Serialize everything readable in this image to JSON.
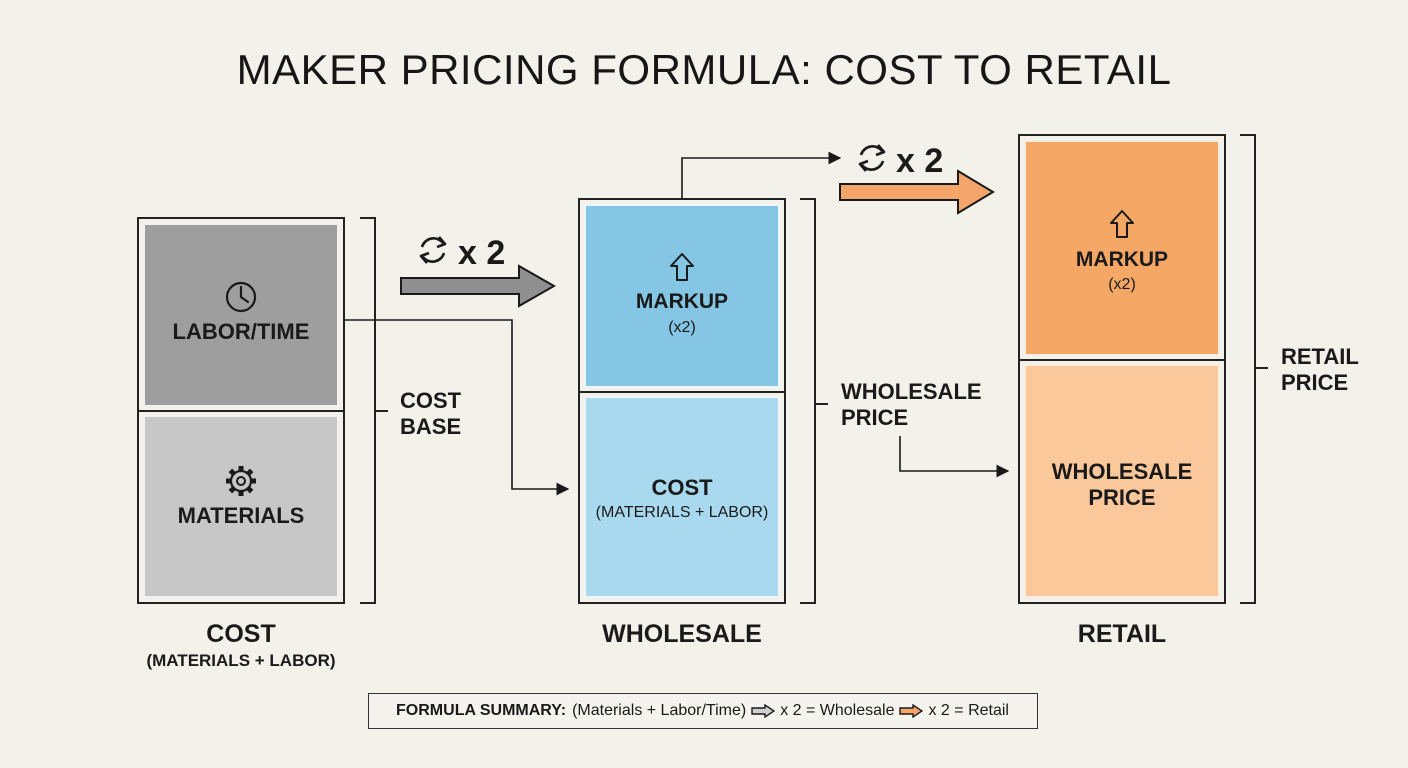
{
  "title": "MAKER PRICING FORMULA: COST TO RETAIL",
  "colors": {
    "gray_dark": "#9e9e9e",
    "gray_light": "#c7c7c7",
    "blue_dark": "#84c6e4",
    "blue_light": "#a9d9ee",
    "orange_dark": "#f5a865",
    "orange_light": "#fac89a",
    "arrow_gray": "#8f8f8f",
    "arrow_orange": "#f4a66a"
  },
  "cost": {
    "labor_label": "LABOR/TIME",
    "labor_icon": "clock-icon",
    "materials_label": "MATERIALS",
    "materials_icon": "gear-icon",
    "bracket_label_1": "COST",
    "bracket_label_2": "BASE",
    "caption": "COST",
    "subcaption": "(MATERIALS + LABOR)"
  },
  "multiplier_1": {
    "icon": "cycle-icon",
    "label": "x 2"
  },
  "multiplier_2": {
    "icon": "cycle-icon",
    "label": "x 2"
  },
  "wholesale": {
    "markup_icon": "up-arrow-icon",
    "markup_label": "MARKUP",
    "markup_sub": "(x2)",
    "cost_label": "COST",
    "cost_sub": "(MATERIALS + LABOR)",
    "bracket_label_1": "WHOLESALE",
    "bracket_label_2": "PRICE",
    "caption": "WHOLESALE"
  },
  "retail": {
    "markup_icon": "up-arrow-icon",
    "markup_label": "MARKUP",
    "markup_sub": "(x2)",
    "wholesale_label_1": "WHOLESALE",
    "wholesale_label_2": "PRICE",
    "bracket_label_1": "RETAIL",
    "bracket_label_2": "PRICE",
    "caption": "RETAIL"
  },
  "summary": {
    "lead": "FORMULA SUMMARY:",
    "part1": "(Materials + Labor/Time)",
    "part2": "x 2 = Wholesale",
    "part3": "x 2 = Retail"
  }
}
